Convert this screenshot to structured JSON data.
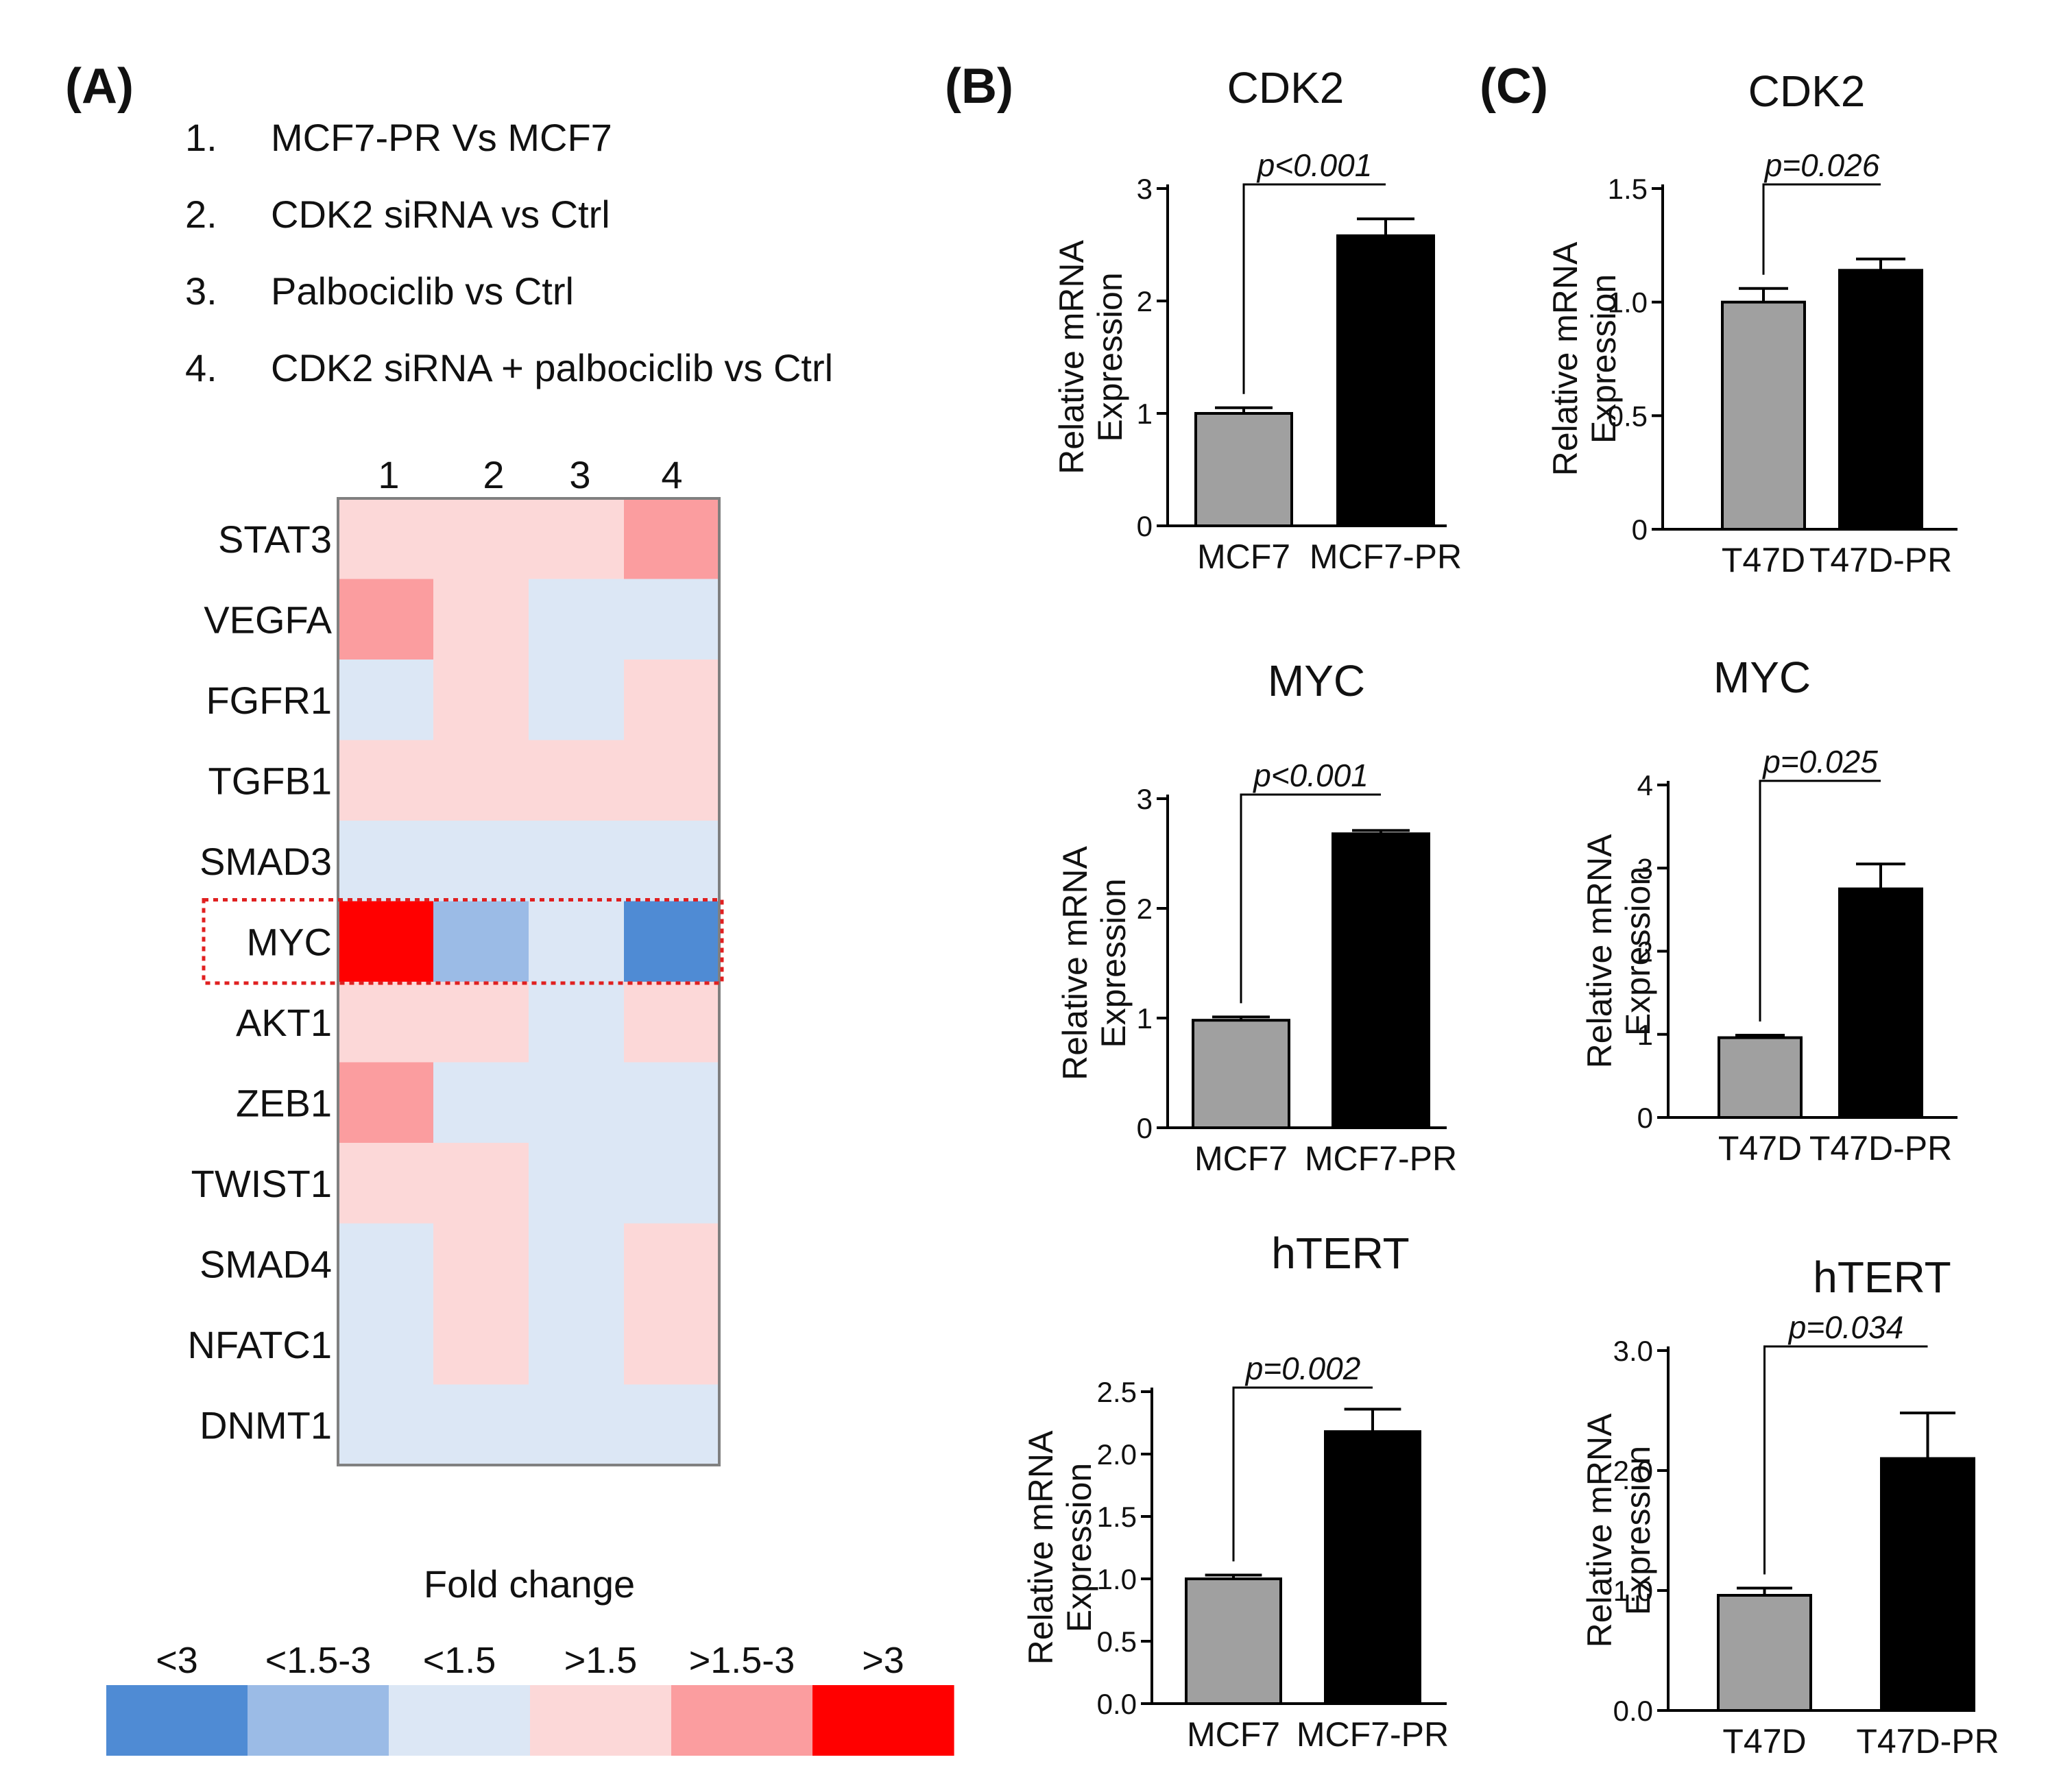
{
  "figure": {
    "panel_labels": [
      "(A)",
      "(B)",
      "(C)"
    ]
  },
  "heatmap": {
    "comparisons": [
      {
        "num": "1.",
        "text": "MCF7-PR Vs MCF7"
      },
      {
        "num": "2.",
        "text": "CDK2 siRNA vs Ctrl"
      },
      {
        "num": "3.",
        "text": "Palbociclib vs Ctrl"
      },
      {
        "num": "4.",
        "text": "CDK2 siRNA + palbociclib vs Ctrl"
      }
    ],
    "columns": [
      "1",
      "2",
      "3",
      "4"
    ],
    "genes": [
      "STAT3",
      "VEGFA",
      "FGFR1",
      "TGFB1",
      "SMAD3",
      "MYC",
      "AKT1",
      "ZEB1",
      "TWIST1",
      "SMAD4",
      "NFATC1",
      "DNMT1"
    ],
    "categories": [
      "<3",
      "<1.5-3",
      "<1.5",
      ">1.5",
      ">1.5-3",
      ">3"
    ],
    "category_colors": [
      "#4f8bd4",
      "#9bbbe6",
      "#dce7f5",
      "#fcd8d8",
      "#fb9d9f",
      "#ff0000"
    ],
    "cells": [
      [
        3,
        3,
        3,
        4
      ],
      [
        4,
        3,
        2,
        2
      ],
      [
        2,
        3,
        2,
        3
      ],
      [
        3,
        3,
        3,
        3
      ],
      [
        2,
        2,
        2,
        2
      ],
      [
        5,
        1,
        2,
        0
      ],
      [
        3,
        3,
        2,
        3
      ],
      [
        4,
        2,
        2,
        2
      ],
      [
        3,
        3,
        2,
        2
      ],
      [
        2,
        3,
        2,
        3
      ],
      [
        2,
        3,
        2,
        3
      ],
      [
        2,
        2,
        2,
        2
      ]
    ],
    "highlighted_gene": "MYC",
    "legend_title": "Fold change"
  },
  "chart_data": [
    {
      "type": "bar",
      "panel": "B",
      "title": "CDK2",
      "ylabel_line1": "Relative mRNA",
      "ylabel_line2": "Expression",
      "categories": [
        "MCF7",
        "MCF7-PR"
      ],
      "values": [
        1.0,
        2.58
      ],
      "errors": [
        0.05,
        0.15
      ],
      "ylim": [
        0,
        3
      ],
      "yticks": [
        {
          "v": 0,
          "label": "0"
        },
        {
          "v": 1,
          "label": "1"
        },
        {
          "v": 2,
          "label": "2"
        },
        {
          "v": 3,
          "label": "3"
        }
      ],
      "pvalue": "p<0.001",
      "bar_colors": [
        "#a0a0a0",
        "#000000"
      ]
    },
    {
      "type": "bar",
      "panel": "C",
      "title": "CDK2",
      "ylabel_line1": "Relative mRNA",
      "ylabel_line2": "Expression",
      "categories": [
        "T47D",
        "T47D-PR"
      ],
      "values": [
        1.0,
        1.14
      ],
      "errors": [
        0.06,
        0.05
      ],
      "ylim": [
        0,
        1.5
      ],
      "yticks": [
        {
          "v": 0,
          "label": "0"
        },
        {
          "v": 0.5,
          "label": "0.5"
        },
        {
          "v": 1.0,
          "label": "1.0"
        },
        {
          "v": 1.5,
          "label": "1.5"
        }
      ],
      "pvalue": "p=0.026",
      "bar_colors": [
        "#a0a0a0",
        "#000000"
      ]
    },
    {
      "type": "bar",
      "panel": "B",
      "title": "MYC",
      "ylabel_line1": "Relative mRNA",
      "ylabel_line2": "Expression",
      "categories": [
        "MCF7",
        "MCF7-PR"
      ],
      "values": [
        0.98,
        2.68
      ],
      "errors": [
        0.03,
        0.03
      ],
      "ylim": [
        0,
        3
      ],
      "yticks": [
        {
          "v": 0,
          "label": "0"
        },
        {
          "v": 1,
          "label": "1"
        },
        {
          "v": 2,
          "label": "2"
        },
        {
          "v": 3,
          "label": "3"
        }
      ],
      "pvalue": "p<0.001",
      "bar_colors": [
        "#a0a0a0",
        "#000000"
      ]
    },
    {
      "type": "bar",
      "panel": "C",
      "title": "MYC",
      "ylabel_line1": "Relative mRNA",
      "ylabel_line2": "Expression",
      "categories": [
        "T47D",
        "T47D-PR"
      ],
      "values": [
        0.96,
        2.75
      ],
      "errors": [
        0.03,
        0.3
      ],
      "ylim": [
        0,
        4
      ],
      "yticks": [
        {
          "v": 0,
          "label": "0"
        },
        {
          "v": 1,
          "label": "1"
        },
        {
          "v": 2,
          "label": "2"
        },
        {
          "v": 3,
          "label": "3"
        },
        {
          "v": 4,
          "label": "4"
        }
      ],
      "pvalue": "p=0.025",
      "bar_colors": [
        "#a0a0a0",
        "#000000"
      ]
    },
    {
      "type": "bar",
      "panel": "B",
      "title": "hTERT",
      "ylabel_line1": "Relative mRNA",
      "ylabel_line2": "Expression",
      "categories": [
        "MCF7",
        "MCF7-PR"
      ],
      "values": [
        1.0,
        2.18
      ],
      "errors": [
        0.03,
        0.18
      ],
      "ylim": [
        0,
        2.5
      ],
      "yticks": [
        {
          "v": 0,
          "label": "0.0"
        },
        {
          "v": 0.5,
          "label": "0.5"
        },
        {
          "v": 1.0,
          "label": "1.0"
        },
        {
          "v": 1.5,
          "label": "1.5"
        },
        {
          "v": 2.0,
          "label": "2.0"
        },
        {
          "v": 2.5,
          "label": "2.5"
        }
      ],
      "pvalue": "p=0.002",
      "bar_colors": [
        "#a0a0a0",
        "#000000"
      ]
    },
    {
      "type": "bar",
      "panel": "C",
      "title": "hTERT",
      "ylabel_line1": "Relative mRNA",
      "ylabel_line2": "Expression",
      "categories": [
        "T47D",
        "T47D-PR"
      ],
      "values": [
        0.96,
        2.1
      ],
      "errors": [
        0.06,
        0.38
      ],
      "ylim": [
        0,
        3.0
      ],
      "yticks": [
        {
          "v": 0,
          "label": "0.0"
        },
        {
          "v": 1.0,
          "label": "1.0"
        },
        {
          "v": 2.0,
          "label": "2.0"
        },
        {
          "v": 3.0,
          "label": "3.0"
        }
      ],
      "pvalue": "p=0.034",
      "bar_colors": [
        "#a0a0a0",
        "#000000"
      ]
    }
  ]
}
